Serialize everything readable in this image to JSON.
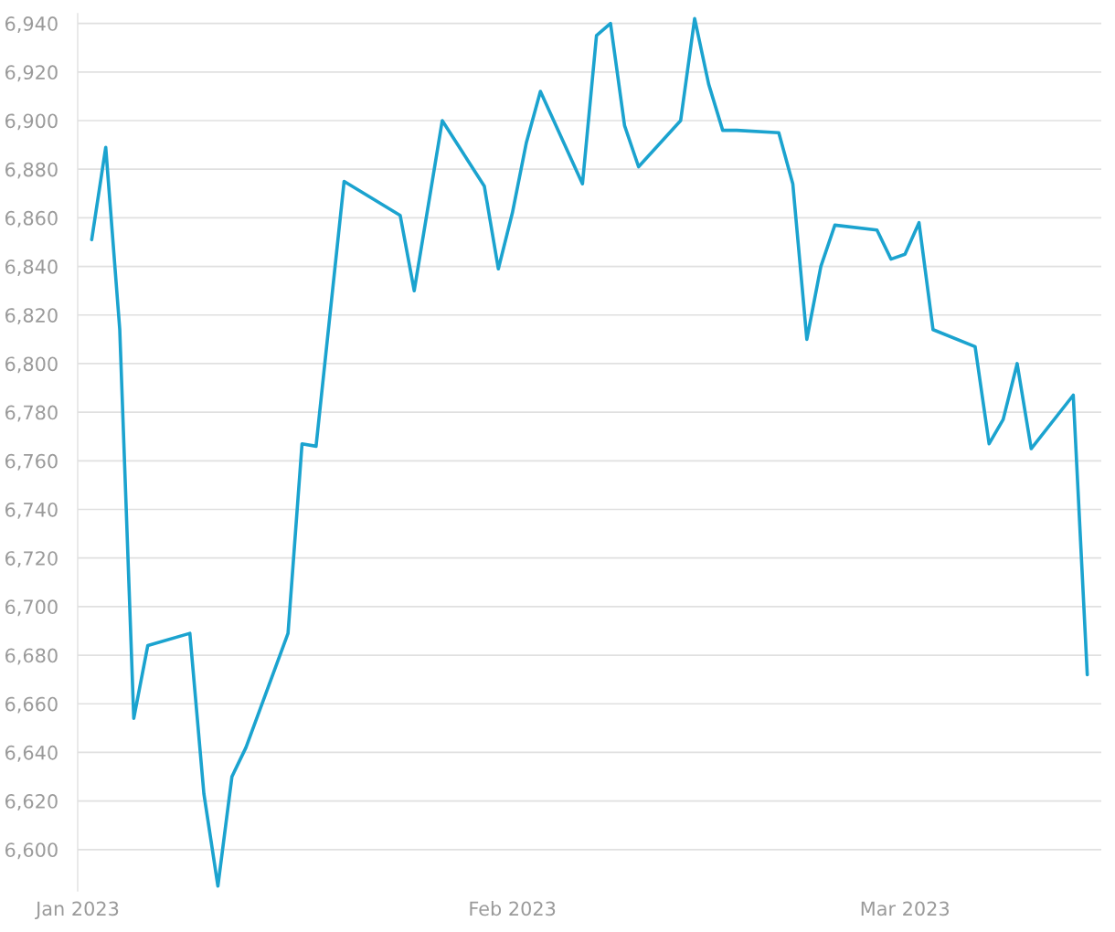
{
  "chart_data": {
    "type": "line",
    "x": [
      "2023-01-02",
      "2023-01-03",
      "2023-01-04",
      "2023-01-05",
      "2023-01-06",
      "2023-01-09",
      "2023-01-10",
      "2023-01-11",
      "2023-01-12",
      "2023-01-13",
      "2023-01-16",
      "2023-01-17",
      "2023-01-18",
      "2023-01-20",
      "2023-01-24",
      "2023-01-25",
      "2023-01-26",
      "2023-01-27",
      "2023-01-30",
      "2023-01-31",
      "2023-02-01",
      "2023-02-02",
      "2023-02-03",
      "2023-02-06",
      "2023-02-07",
      "2023-02-08",
      "2023-02-09",
      "2023-02-10",
      "2023-02-13",
      "2023-02-14",
      "2023-02-15",
      "2023-02-16",
      "2023-02-17",
      "2023-02-20",
      "2023-02-21",
      "2023-02-22",
      "2023-02-23",
      "2023-02-24",
      "2023-02-27",
      "2023-02-28",
      "2023-03-01",
      "2023-03-02",
      "2023-03-03",
      "2023-03-06",
      "2023-03-07",
      "2023-03-08",
      "2023-03-09",
      "2023-03-10",
      "2023-03-13",
      "2023-03-14"
    ],
    "series": [
      {
        "color": "#1ba3cf",
        "values": [
          6851,
          6889,
          6814,
          6654,
          6684,
          6689,
          6623,
          6585,
          6630,
          6642,
          6689,
          6767,
          6766,
          6875,
          6861,
          6830,
          6865,
          6900,
          6873,
          6839,
          6862,
          6891,
          6912,
          6874,
          6935,
          6940,
          6898,
          6881,
          6900,
          6942,
          6915,
          6896,
          6896,
          6895,
          6874,
          6810,
          6840,
          6857,
          6855,
          6843,
          6845,
          6858,
          6814,
          6807,
          6767,
          6777,
          6800,
          6765,
          6787,
          6672
        ]
      }
    ],
    "xlim": [
      "2023-01-01",
      "2023-03-15"
    ],
    "xticks": [
      {
        "value": "2023-01-01",
        "label": "Jan 2023"
      },
      {
        "value": "2023-02-01",
        "label": "Feb 2023"
      },
      {
        "value": "2023-03-01",
        "label": "Mar 2023"
      }
    ],
    "yticks": [
      {
        "value": 6600,
        "label": "6,600"
      },
      {
        "value": 6620,
        "label": "6,620"
      },
      {
        "value": 6640,
        "label": "6,640"
      },
      {
        "value": 6660,
        "label": "6,660"
      },
      {
        "value": 6680,
        "label": "6,680"
      },
      {
        "value": 6700,
        "label": "6,700"
      },
      {
        "value": 6720,
        "label": "6,720"
      },
      {
        "value": 6740,
        "label": "6,740"
      },
      {
        "value": 6760,
        "label": "6,760"
      },
      {
        "value": 6780,
        "label": "6,780"
      },
      {
        "value": 6800,
        "label": "6,800"
      },
      {
        "value": 6820,
        "label": "6,820"
      },
      {
        "value": 6840,
        "label": "6,840"
      },
      {
        "value": 6860,
        "label": "6,860"
      },
      {
        "value": 6880,
        "label": "6,880"
      },
      {
        "value": 6900,
        "label": "6,900"
      },
      {
        "value": 6920,
        "label": "6,920"
      },
      {
        "value": 6940,
        "label": "6,940"
      }
    ],
    "ylim": [
      6583,
      6944
    ],
    "grid": "y"
  }
}
